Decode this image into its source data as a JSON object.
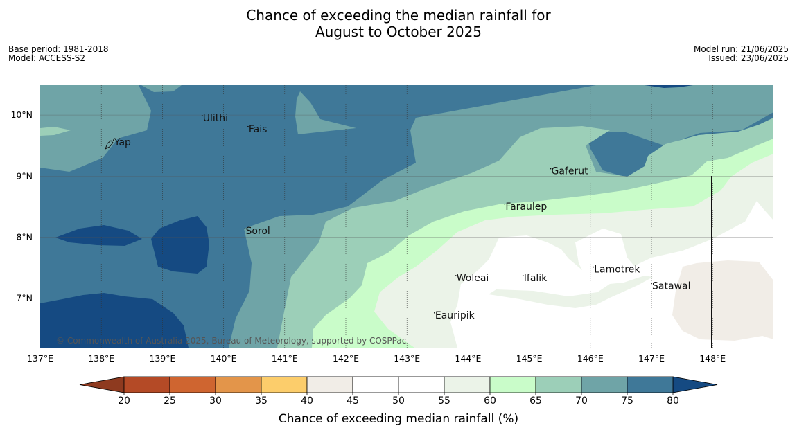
{
  "title_line1": "Chance of exceeding the median rainfall for",
  "title_line2": "August to October 2025",
  "base_period": "Base period: 1981-2018",
  "model": "Model: ACCESS-S2",
  "model_run": "Model run: 21/06/2025",
  "issued": "Issued: 23/06/2025",
  "copyright": "© Commonwealth of Australia 2025, Bureau of Meteorology, supported by COSPPac",
  "map": {
    "lon_range": [
      137,
      148.99
    ],
    "lat_range": [
      6.2,
      10.5
    ],
    "lon_ticks": [
      "137°E",
      "138°E",
      "139°E",
      "140°E",
      "141°E",
      "142°E",
      "143°E",
      "144°E",
      "145°E",
      "146°E",
      "147°E",
      "148°E"
    ],
    "lat_ticks": [
      "10°N",
      "9°N",
      "8°N",
      "7°N"
    ]
  },
  "places": [
    {
      "name": "Yap",
      "lon": 138.2,
      "lat": 9.5
    },
    {
      "name": "Ulithi",
      "lon": 139.65,
      "lat": 9.9
    },
    {
      "name": "Fais",
      "lon": 140.4,
      "lat": 9.72
    },
    {
      "name": "Gaferut",
      "lon": 145.35,
      "lat": 9.03
    },
    {
      "name": "Faraulep",
      "lon": 144.6,
      "lat": 8.45
    },
    {
      "name": "Sorol",
      "lon": 140.35,
      "lat": 8.05
    },
    {
      "name": "Lamotrek",
      "lon": 146.05,
      "lat": 7.42
    },
    {
      "name": "Woleai",
      "lon": 143.8,
      "lat": 7.28
    },
    {
      "name": "Ifalik",
      "lon": 144.9,
      "lat": 7.28
    },
    {
      "name": "Satawal",
      "lon": 147.0,
      "lat": 7.15
    },
    {
      "name": "Eauripik",
      "lon": 143.45,
      "lat": 6.67
    }
  ],
  "colorbar": {
    "label": "Chance of exceeding median rainfall (%)",
    "ticks": [
      "20",
      "25",
      "30",
      "35",
      "40",
      "45",
      "50",
      "55",
      "60",
      "65",
      "70",
      "75",
      "80"
    ],
    "low_color": "#8e3a1f",
    "high_color": "#154a82",
    "colors": [
      "#b44a26",
      "#cf6530",
      "#e3954a",
      "#fccd6b",
      "#f1ede7",
      "#ffffff",
      "#ffffff",
      "#ebf3e8",
      "#c9fcc9",
      "#9ccfb8",
      "#6fa4a7",
      "#3f7898"
    ]
  },
  "zone_colors": {
    "c80": "#154a82",
    "c75": "#3f7898",
    "c70": "#6fa4a7",
    "c65": "#9ccfb8",
    "c60": "#c9fcc9",
    "c55": "#ebf3e8",
    "c45": "#f1ede7"
  }
}
